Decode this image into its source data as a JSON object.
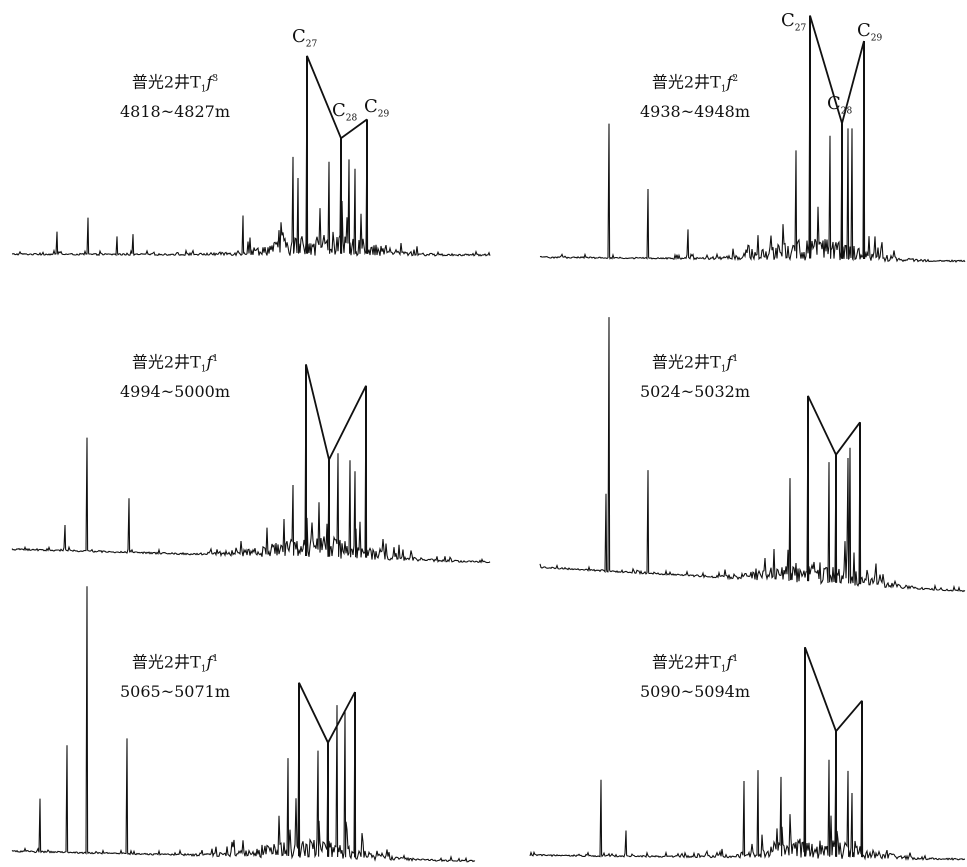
{
  "chart_data": [
    {
      "type": "line",
      "panel": 1,
      "well": "普光2井",
      "formation": {
        "base": "T",
        "sub": "1",
        "unit": "f",
        "sup": "3"
      },
      "depth": "4818~4827m",
      "peak_labels": [
        {
          "prefix": "C",
          "number": "27"
        },
        {
          "prefix": "C",
          "number": "28"
        },
        {
          "prefix": "C",
          "number": "29"
        }
      ],
      "peaks": {
        "C27": 0.85,
        "C28": 0.5,
        "C29": 0.58
      }
    },
    {
      "type": "line",
      "panel": 2,
      "well": "普光2井",
      "formation": {
        "base": "T",
        "sub": "1",
        "unit": "f",
        "sup": "2"
      },
      "depth": "4938~4948m",
      "peak_labels": [
        {
          "prefix": "C",
          "number": "27"
        },
        {
          "prefix": "C",
          "number": "28"
        },
        {
          "prefix": "C",
          "number": "29"
        }
      ],
      "peaks": {
        "C27": 0.98,
        "C28": 0.55,
        "C29": 0.88
      }
    },
    {
      "type": "line",
      "panel": 3,
      "well": "普光2井",
      "formation": {
        "base": "T",
        "sub": "1",
        "unit": "f",
        "sup": "1"
      },
      "depth": "4994~5000m",
      "peak_labels": [],
      "peaks": {
        "C27": 0.88,
        "C28": 0.45,
        "C29": 0.79
      }
    },
    {
      "type": "line",
      "panel": 4,
      "well": "普光2井",
      "formation": {
        "base": "T",
        "sub": "1",
        "unit": "f",
        "sup": "1"
      },
      "depth": "5024~5032m",
      "peak_labels": [],
      "peaks": {
        "C27": 0.72,
        "C28": 0.5,
        "C29": 0.63
      }
    },
    {
      "type": "line",
      "panel": 5,
      "well": "普光2井",
      "formation": {
        "base": "T",
        "sub": "1",
        "unit": "f",
        "sup": "1"
      },
      "depth": "5065~5071m",
      "peak_labels": [],
      "peaks": {
        "C27": 0.65,
        "C28": 0.43,
        "C29": 0.62
      }
    },
    {
      "type": "line",
      "panel": 6,
      "well": "普光2井",
      "formation": {
        "base": "T",
        "sub": "1",
        "unit": "f",
        "sup": "1"
      },
      "depth": "5090~5094m",
      "peak_labels": [],
      "peaks": {
        "C27": 0.96,
        "C28": 0.58,
        "C29": 0.72
      }
    }
  ]
}
